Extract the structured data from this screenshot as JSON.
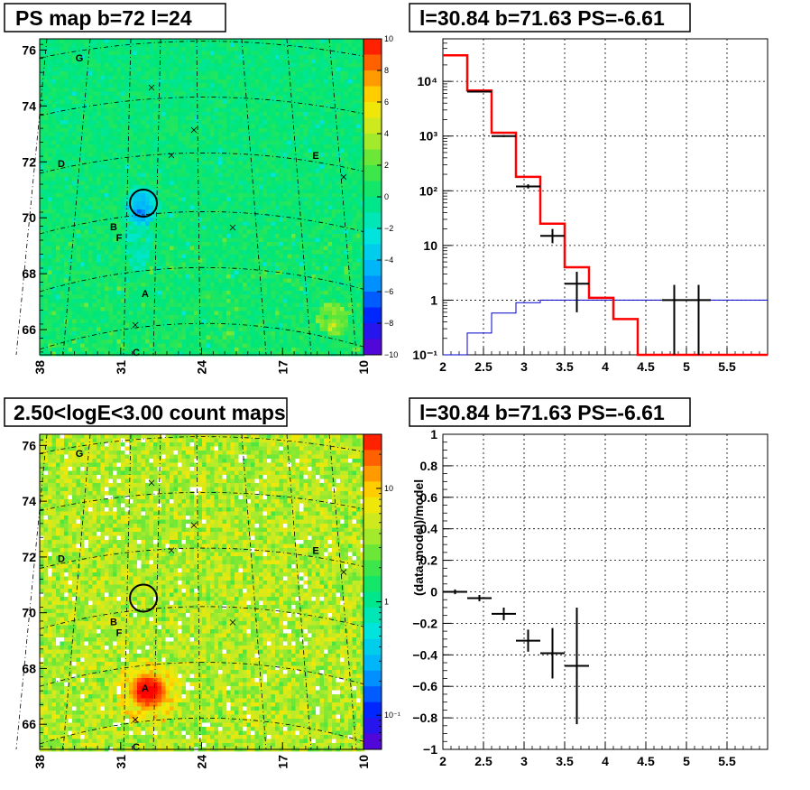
{
  "panels": {
    "ps_map": {
      "title": "PS map b=72 l=24",
      "y_ticks": [
        "76",
        "74",
        "72",
        "70",
        "68",
        "66"
      ],
      "x_ticks": [
        "38",
        "31",
        "24",
        "17",
        "10"
      ],
      "colorbar_ticks": [
        "10",
        "8",
        "6",
        "4",
        "2",
        "0",
        "−2",
        "−4",
        "−6",
        "−8",
        "−10"
      ],
      "source_labels": [
        "G",
        "D",
        "E",
        "B",
        "F",
        "A",
        "C"
      ]
    },
    "count_map": {
      "title": "2.50<logE<3.00 count maps",
      "y_ticks": [
        "76",
        "74",
        "72",
        "70",
        "68",
        "66"
      ],
      "x_ticks": [
        "38",
        "31",
        "24",
        "17",
        "10"
      ],
      "colorbar_ticks": [
        "10",
        "1",
        "10⁻¹"
      ],
      "source_labels": [
        "G",
        "D",
        "E",
        "B",
        "F",
        "A",
        "C"
      ]
    },
    "spectrum": {
      "title": "l=30.84 b=71.63 PS=-6.61",
      "y_ticks": [
        "10⁴",
        "10³",
        "10²",
        "10",
        "1",
        "10⁻¹"
      ],
      "x_ticks": [
        "2",
        "2.5",
        "3",
        "3.5",
        "4",
        "4.5",
        "5",
        "5.5"
      ]
    },
    "residual": {
      "title": "l=30.84 b=71.63 PS=-6.61",
      "ylabel": "(data-model)/model",
      "y_ticks": [
        "1",
        "0.8",
        "0.6",
        "0.4",
        "0.2",
        "0",
        "−0.2",
        "−0.4",
        "−0.6",
        "−0.8",
        "−1"
      ],
      "x_ticks": [
        "2",
        "2.5",
        "3",
        "3.5",
        "4",
        "4.5",
        "5",
        "5.5"
      ]
    }
  },
  "colors": {
    "model_total": "#ff0000",
    "background_model": "#0000cc",
    "data": "#000000"
  },
  "chart_data": [
    {
      "type": "heatmap",
      "title": "PS map b=72 l=24",
      "xlabel": "",
      "ylabel": "",
      "xlim": [
        38,
        10
      ],
      "ylim": [
        65.3,
        76.6
      ],
      "colorbar_range": [
        -10,
        10
      ],
      "markers": [
        {
          "label": "G",
          "x": 36.6,
          "y": 76.2
        },
        {
          "label": "D",
          "x": 37.2,
          "y": 72.2
        },
        {
          "label": "E",
          "x": 14.1,
          "y": 72.5
        },
        {
          "label": "B",
          "x": 31.9,
          "y": 70.0
        },
        {
          "label": "F",
          "x": 31.2,
          "y": 69.6
        },
        {
          "label": "A",
          "x": 28.5,
          "y": 67.5
        },
        {
          "label": "C",
          "x": 30.5,
          "y": 65.3
        }
      ],
      "circle_center": {
        "x": 28.9,
        "y": 70.9
      }
    },
    {
      "type": "line",
      "title": "l=30.84 b=71.63 PS=-6.61",
      "xlabel": "",
      "ylabel": "",
      "x_scale": "linear",
      "y_scale": "log",
      "xlim": [
        2,
        6
      ],
      "ylim": [
        0.1,
        60000
      ],
      "series": [
        {
          "bins": [
            2.0,
            2.3,
            2.6,
            2.9,
            3.2,
            3.5,
            3.8,
            4.1,
            4.4,
            4.7,
            5.0,
            5.3,
            5.6,
            6.0
          ],
          "values": [
            30000,
            6800,
            1150,
            180,
            25,
            4,
            1.1,
            0.45,
            0.1,
            0.1,
            0.1,
            0.1,
            0.1
          ]
        },
        {
          "bins": [
            2.0,
            2.3,
            2.6,
            2.9,
            3.2,
            3.5,
            3.8,
            4.1,
            4.4,
            4.7,
            5.0,
            5.3,
            5.6,
            6.0
          ],
          "values": [
            0.1,
            0.25,
            0.58,
            0.9,
            1.0,
            1.0,
            1.0,
            1.0,
            1.0,
            1.0,
            1.0,
            1.0,
            1.0
          ]
        },
        {
          "points": [
            {
              "x": 2.45,
              "y": 6500,
              "xerr": 0.15,
              "ylo": 6400,
              "yhi": 6600
            },
            {
              "x": 2.75,
              "y": 1000,
              "xerr": 0.15,
              "ylo": 960,
              "yhi": 1040
            },
            {
              "x": 3.05,
              "y": 120,
              "xerr": 0.15,
              "ylo": 110,
              "yhi": 131
            },
            {
              "x": 3.35,
              "y": 15,
              "xerr": 0.15,
              "ylo": 11,
              "yhi": 20
            },
            {
              "x": 3.65,
              "y": 2,
              "xerr": 0.15,
              "ylo": 0.6,
              "yhi": 3.3
            },
            {
              "x": 4.85,
              "y": 1,
              "xerr": 0.15,
              "ylo": 0.1,
              "yhi": 1.9
            },
            {
              "x": 5.15,
              "y": 1,
              "xerr": 0.15,
              "ylo": 0.1,
              "yhi": 1.9
            }
          ]
        }
      ]
    },
    {
      "type": "heatmap",
      "title": "2.50<logE<3.00 count maps",
      "xlabel": "",
      "ylabel": "",
      "xlim": [
        38,
        10
      ],
      "ylim": [
        65.3,
        76.6
      ],
      "colorbar_scale": "log",
      "colorbar_range": [
        0.05,
        30
      ]
    },
    {
      "type": "scatter",
      "title": "l=30.84 b=71.63 PS=-6.61",
      "xlabel": "",
      "ylabel": "(data-model)/model",
      "xlim": [
        2,
        6
      ],
      "ylim": [
        -1,
        1
      ],
      "points": [
        {
          "x": 2.15,
          "y": 0.0,
          "xerr": 0.15,
          "ylo": -0.015,
          "yhi": 0.015
        },
        {
          "x": 2.45,
          "y": -0.04,
          "xerr": 0.15,
          "ylo": -0.06,
          "yhi": -0.02
        },
        {
          "x": 2.75,
          "y": -0.14,
          "xerr": 0.15,
          "ylo": -0.18,
          "yhi": -0.1
        },
        {
          "x": 3.05,
          "y": -0.31,
          "xerr": 0.15,
          "ylo": -0.38,
          "yhi": -0.24
        },
        {
          "x": 3.35,
          "y": -0.39,
          "xerr": 0.15,
          "ylo": -0.55,
          "yhi": -0.23
        },
        {
          "x": 3.65,
          "y": -0.47,
          "xerr": 0.15,
          "ylo": -0.84,
          "yhi": -0.1
        }
      ]
    }
  ]
}
